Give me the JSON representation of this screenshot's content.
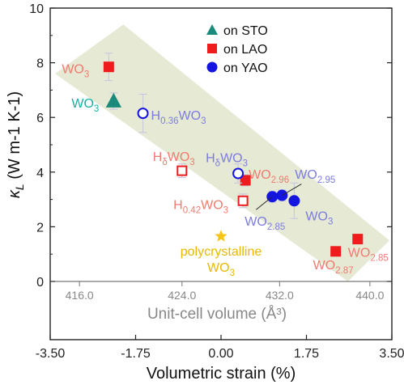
{
  "chart_data": {
    "type": "scatter",
    "xlabel": "Volumetric strain (%)",
    "ylabel_main": "κ",
    "ylabel_sub": "L",
    "ylabel_units": "(W m-1 K-1)",
    "x2label": "Unit-cell volume (Å³)",
    "xlim": [
      -3.5,
      3.5
    ],
    "ylim": [
      0,
      10
    ],
    "xticks": [
      "-3.50",
      "-1.75",
      "0.00",
      "1.75",
      "3.50"
    ],
    "yticks": [
      "0",
      "2",
      "4",
      "6",
      "8",
      "10"
    ],
    "x2ticks": [
      {
        "label": "416.0",
        "strain": -2.9
      },
      {
        "label": "424.0",
        "strain": -0.8
      },
      {
        "label": "432.0",
        "strain": 1.2
      },
      {
        "label": "440.0",
        "strain": 3.05
      }
    ],
    "legend": [
      {
        "name": "on STO",
        "marker": "triangle",
        "color": "#1a8a7a"
      },
      {
        "name": "on LAO",
        "marker": "square",
        "color": "#ee1c1c"
      },
      {
        "name": "on YAO",
        "marker": "circle",
        "color": "#1515e0"
      }
    ],
    "series": [
      {
        "name": "on STO",
        "points": [
          {
            "x": -2.2,
            "y": 6.6,
            "err": 0.3,
            "filled": true,
            "label": "WO3"
          }
        ]
      },
      {
        "name": "on LAO",
        "points": [
          {
            "x": -2.3,
            "y": 7.85,
            "err": 0.5,
            "filled": true,
            "label": "WO3"
          },
          {
            "x": -0.8,
            "y": 4.05,
            "err": 0.25,
            "filled": false,
            "label": "HδWO3"
          },
          {
            "x": 0.45,
            "y": 2.95,
            "err": 0.25,
            "filled": false,
            "label": "H0.42WO3"
          },
          {
            "x": 0.5,
            "y": 3.7,
            "err": 0.2,
            "filled": true,
            "label": "WO2.96"
          },
          {
            "x": 2.35,
            "y": 1.1,
            "err": 0.15,
            "filled": true,
            "label": "WO2.87"
          },
          {
            "x": 2.8,
            "y": 1.55,
            "err": 0.15,
            "filled": true,
            "label": "WO2.85"
          }
        ]
      },
      {
        "name": "on YAO",
        "points": [
          {
            "x": -1.6,
            "y": 6.15,
            "err": 0.7,
            "filled": false,
            "label": "H0.36WO3"
          },
          {
            "x": 0.35,
            "y": 3.95,
            "err": 0.35,
            "filled": false,
            "label": "HδWO3"
          },
          {
            "x": 1.05,
            "y": 3.1,
            "err": 0.2,
            "filled": true,
            "label": "WO2.95"
          },
          {
            "x": 1.25,
            "y": 3.15,
            "err": 0.2,
            "filled": true,
            "label": ""
          },
          {
            "x": 1.5,
            "y": 2.95,
            "err": 0.65,
            "filled": true,
            "label": "WO3"
          }
        ]
      }
    ],
    "extra_point": {
      "x": 0.0,
      "y": 1.65,
      "color": "#f5c518",
      "label_line1": "polycrystalline",
      "label_line2": "WO3"
    },
    "extra_label": "WO2.85"
  }
}
